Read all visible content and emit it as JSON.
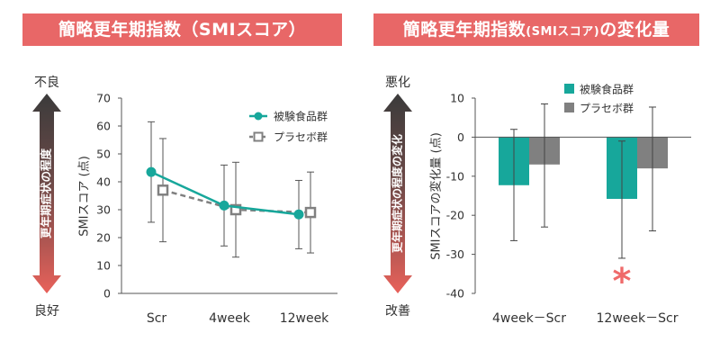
{
  "colors": {
    "accent": "#e86767",
    "teal": "#17a79b",
    "gray": "#808080",
    "axis": "#555555",
    "arrow_top": "#3b3b3b",
    "arrow_bottom": "#e8615a",
    "asterisk": "#ef6a6a"
  },
  "left_panel": {
    "banner": "簡略更年期指数（SMIスコア）",
    "arrow_label": "更年期症状の程度",
    "top_label": "不良",
    "bottom_label": "良好"
  },
  "right_panel": {
    "banner": "簡略更年期指数",
    "banner_small": "(SMIスコア)",
    "banner_tail": "の変化量",
    "arrow_label": "更年期症状の程度の変化",
    "top_label": "悪化",
    "bottom_label": "改善",
    "significance_marker": "*"
  },
  "chart_data": [
    {
      "type": "line",
      "ylabel": "SMIスコア (点)",
      "categories": [
        "Scr",
        "4week",
        "12week"
      ],
      "ylim": [
        0,
        70
      ],
      "yticks": [
        "0",
        "10",
        "20",
        "30",
        "40",
        "50",
        "60",
        "70"
      ],
      "legend_position": "top-right",
      "series": [
        {
          "name": "被験食品群",
          "values": [
            43.5,
            31.5,
            28.3
          ],
          "err_low": [
            25.5,
            17,
            16
          ],
          "err_high": [
            61.5,
            46,
            40.5
          ],
          "color": "#17a79b",
          "marker": "circle",
          "dash": false
        },
        {
          "name": "プラセボ群",
          "values": [
            37,
            30,
            29
          ],
          "err_low": [
            18.5,
            13,
            14.5
          ],
          "err_high": [
            55.5,
            47,
            43.5
          ],
          "color": "#808080",
          "marker": "square",
          "dash": true
        }
      ]
    },
    {
      "type": "bar",
      "ylabel": "SMIスコアの変化量 (点)",
      "categories": [
        "4week－Scr",
        "12week－Scr"
      ],
      "ylim": [
        -40,
        10
      ],
      "yticks": [
        "10",
        "0",
        "-10",
        "-20",
        "-30",
        "-40"
      ],
      "legend_position": "top",
      "series": [
        {
          "name": "被験食品群",
          "values": [
            -12.3,
            -15.8
          ],
          "err_low": [
            -26.5,
            -31
          ],
          "err_high": [
            2,
            -1
          ],
          "color": "#17a79b"
        },
        {
          "name": "プラセボ群",
          "values": [
            -7,
            -8
          ],
          "err_low": [
            -23,
            -24
          ],
          "err_high": [
            8.5,
            7.7
          ],
          "color": "#808080"
        }
      ],
      "significant_category": 1
    }
  ]
}
